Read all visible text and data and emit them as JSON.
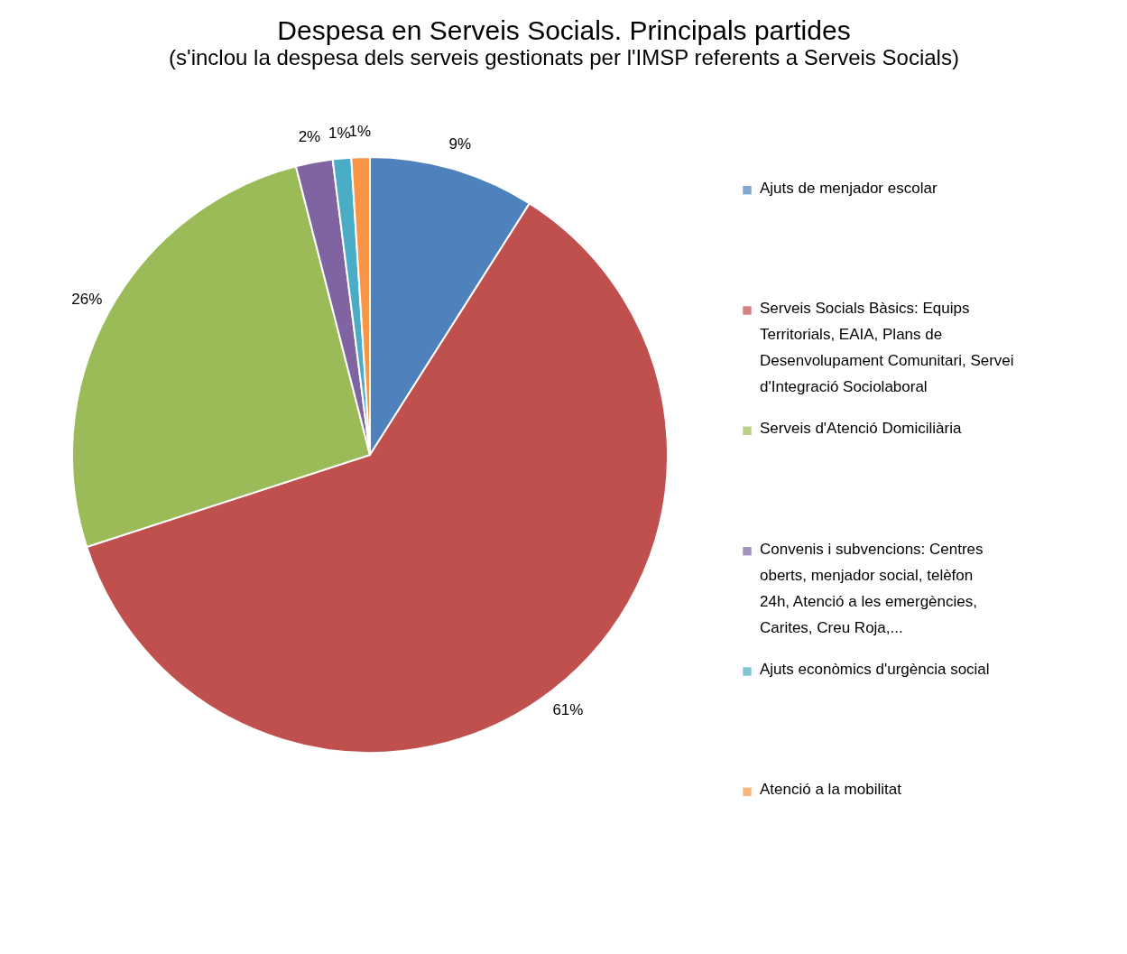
{
  "chart_data": {
    "type": "pie",
    "title": "Despesa en Serveis Socials. Principals partides",
    "subtitle": "(s'inclou la despesa dels serveis gestionats per l'IMSP referents a Serveis Socials)",
    "categories": [
      "Ajuts de menjador escolar",
      "Serveis Socials Bàsics: Equips Territorials, EAIA, Plans de Desenvolupament Comunitari, Servei d'Integració Sociolaboral",
      "Serveis d'Atenció Domiciliària",
      "Convenis i subvencions: Centres oberts, menjador social, telèfon 24h, Atenció a les emergències, Carites, Creu Roja,...",
      "Ajuts econòmics d'urgència social",
      "Atenció a la mobilitat"
    ],
    "values": [
      9,
      61,
      26,
      2,
      1,
      1
    ],
    "value_labels": [
      "9%",
      "61%",
      "26%",
      "2%",
      "1%",
      "1%"
    ],
    "colors": [
      "#4f81bd",
      "#c0504d",
      "#9bbb59",
      "#8064a2",
      "#4bacc6",
      "#f79646"
    ],
    "legend": "right"
  }
}
